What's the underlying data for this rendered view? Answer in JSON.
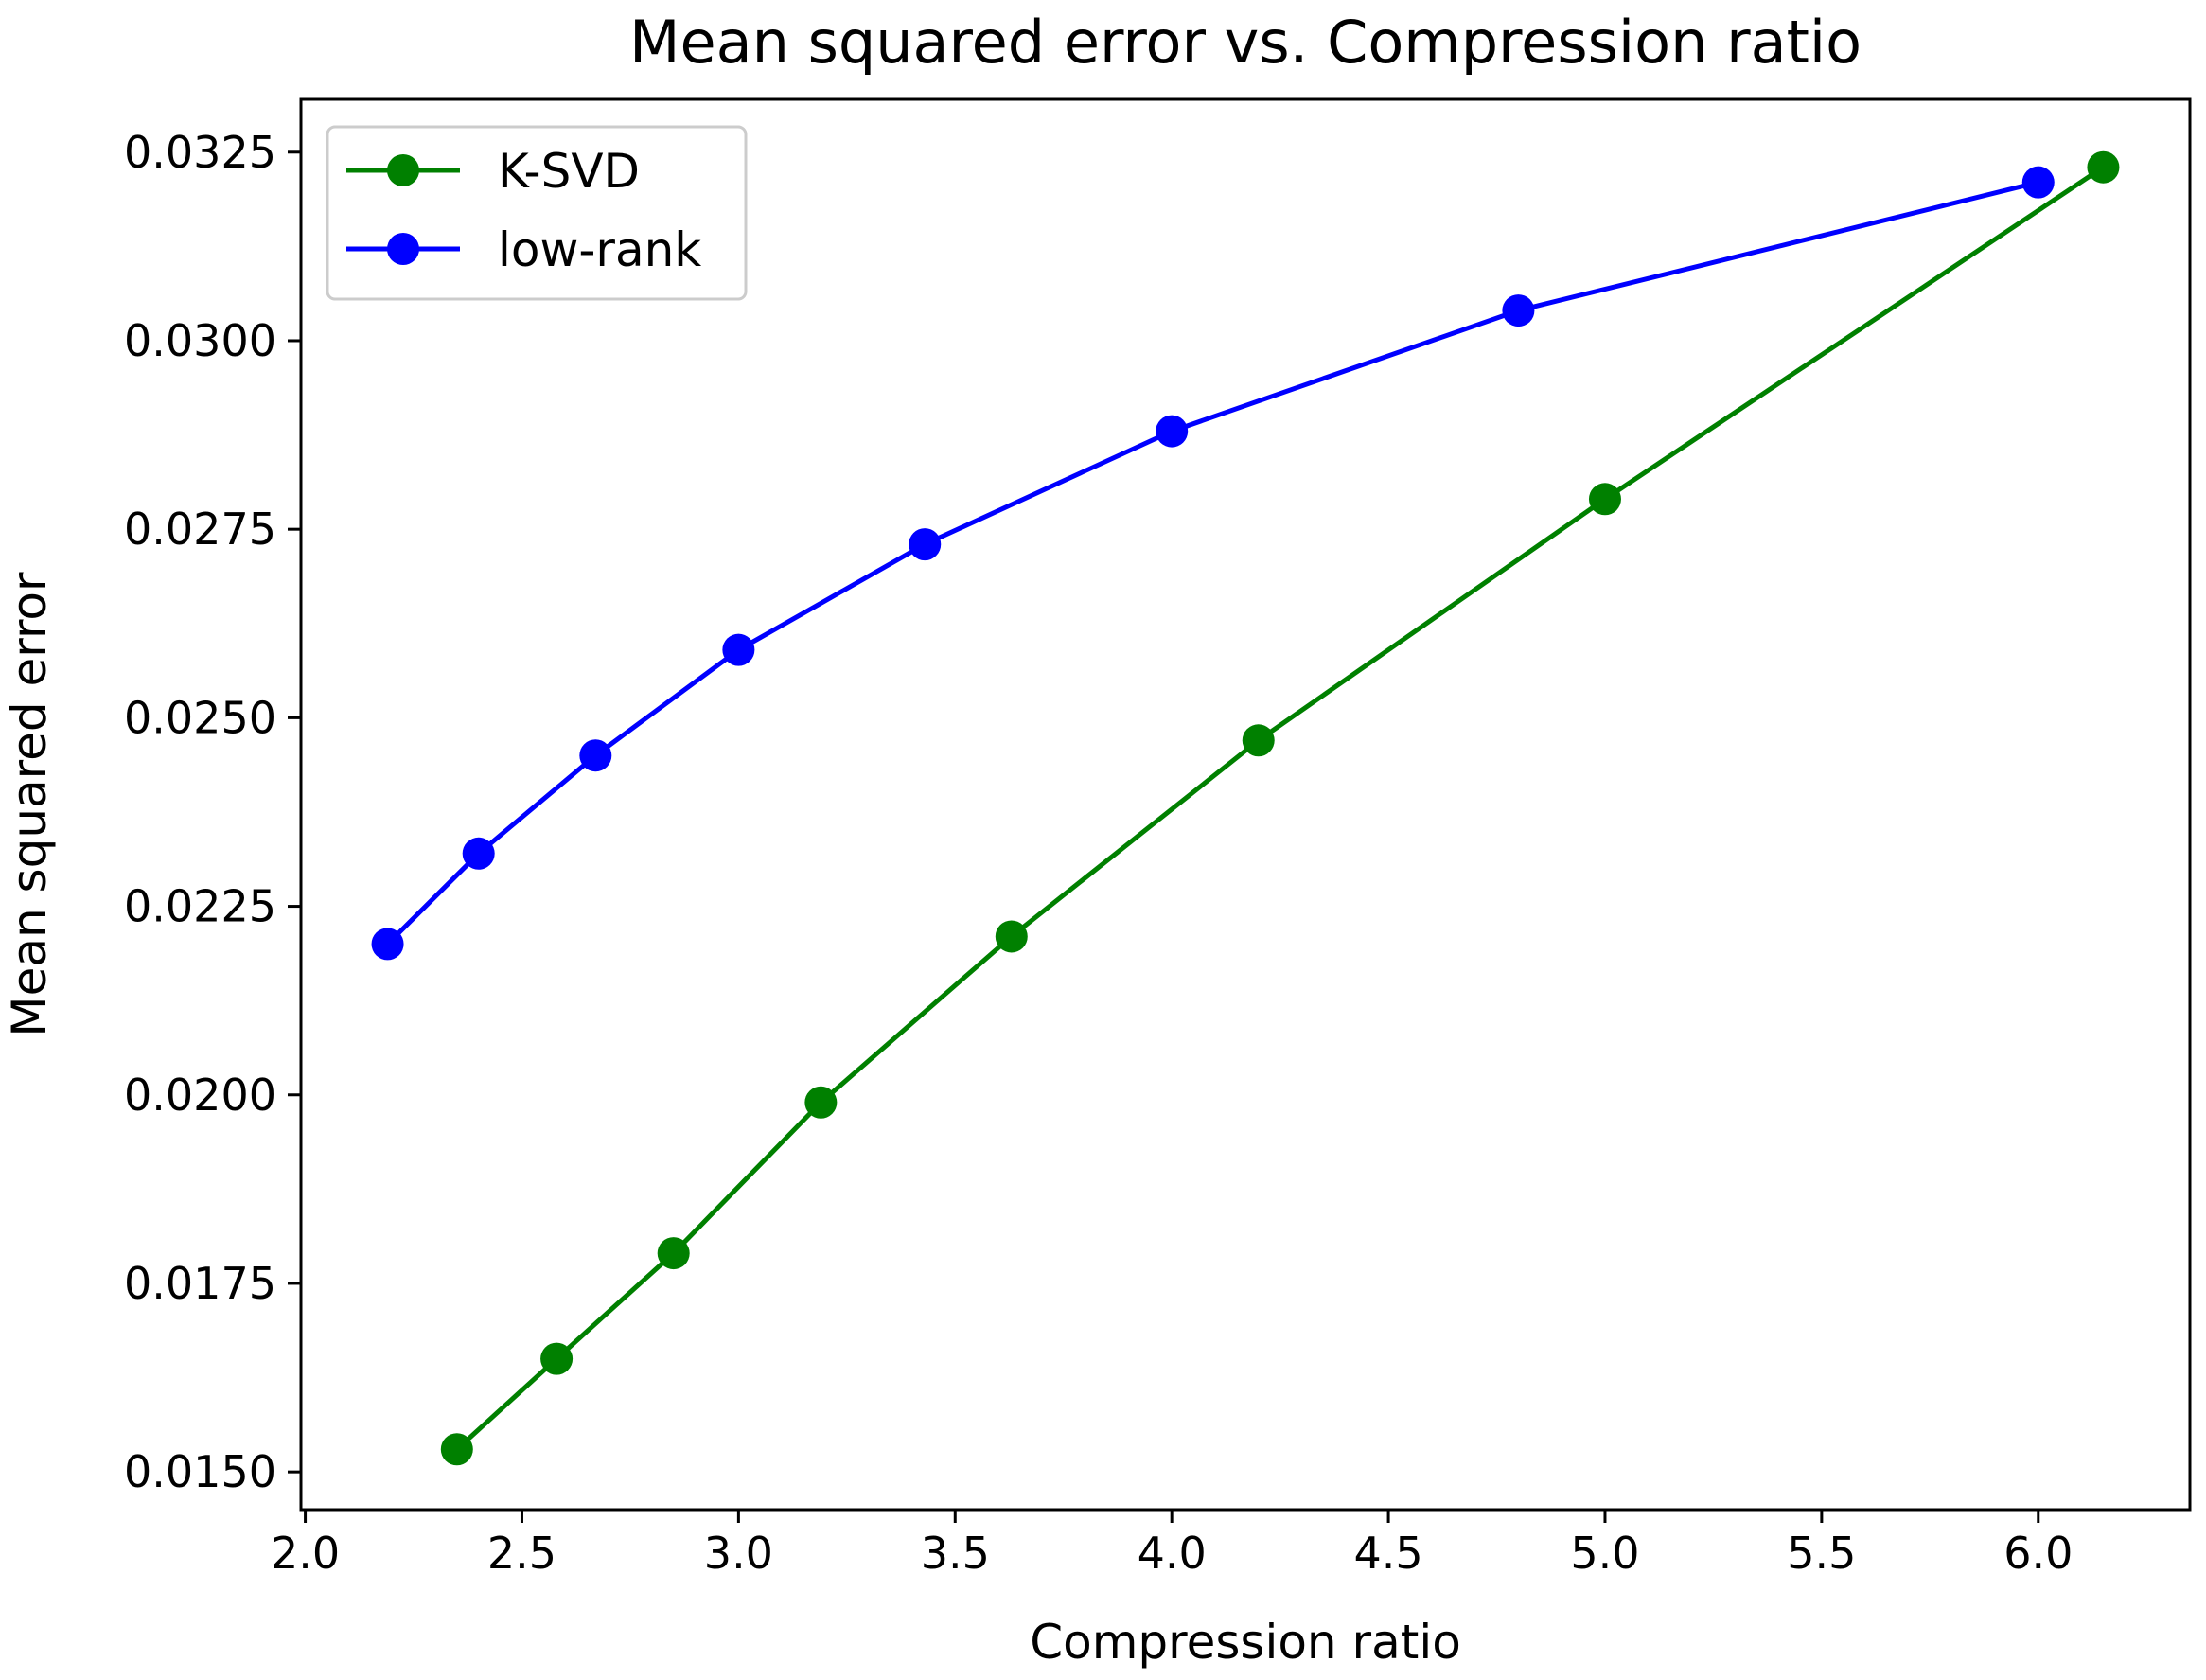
{
  "chart_data": {
    "type": "line",
    "title": "Mean squared error vs. Compression ratio",
    "xlabel": "Compression ratio",
    "ylabel": "Mean squared error",
    "xlim": [
      1.99,
      6.35
    ],
    "ylim": [
      0.0145,
      0.0332
    ],
    "xticks": [
      2.0,
      2.5,
      3.0,
      3.5,
      4.0,
      4.5,
      5.0,
      5.5,
      6.0
    ],
    "xtick_labels": [
      "2.0",
      "2.5",
      "3.0",
      "3.5",
      "4.0",
      "4.5",
      "5.0",
      "5.5",
      "6.0"
    ],
    "yticks": [
      0.015,
      0.0175,
      0.02,
      0.0225,
      0.025,
      0.0275,
      0.03,
      0.0325
    ],
    "ytick_labels": [
      "0.0150",
      "0.0175",
      "0.0200",
      "0.0225",
      "0.0250",
      "0.0275",
      "0.0300",
      "0.0325"
    ],
    "grid": false,
    "legend_position": "top-left",
    "series": [
      {
        "name": "K-SVD",
        "color": "#008000",
        "marker": "circle",
        "x": [
          2.35,
          2.58,
          2.85,
          3.19,
          3.63,
          4.2,
          5.0,
          6.15
        ],
        "y": [
          0.0153,
          0.0165,
          0.0179,
          0.0199,
          0.0221,
          0.0247,
          0.0279,
          0.0323
        ]
      },
      {
        "name": "low-rank",
        "color": "#0000ff",
        "marker": "circle",
        "x": [
          2.19,
          2.4,
          2.67,
          3.0,
          3.43,
          4.0,
          4.8,
          6.0
        ],
        "y": [
          0.022,
          0.0232,
          0.0245,
          0.0259,
          0.0273,
          0.0288,
          0.0304,
          0.0321
        ]
      }
    ]
  }
}
